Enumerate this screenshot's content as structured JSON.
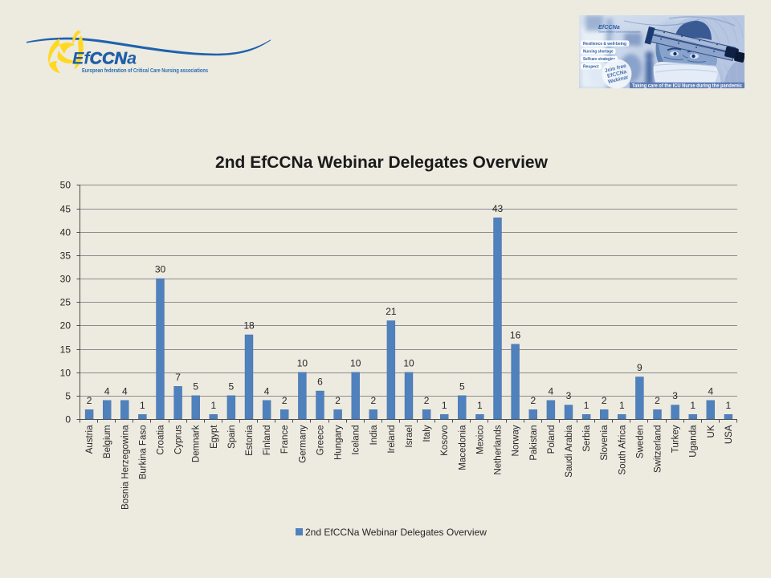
{
  "slide": {
    "background_color": "#EDEAE0"
  },
  "logo": {
    "name_prefix": "Ef",
    "name_mid": "CCN",
    "name_suffix": "a",
    "subtitle": "European federation of Critical Care Nursing associations",
    "brand_blue": "#1F5FA8",
    "accent_yellow": "#FFD821"
  },
  "webinar_banner": {
    "logo_text": "EfCCNa",
    "logo_subtitle": "European federation of Critical Care Nursing associations",
    "topics": [
      "Resilience & well-being",
      "Nursing shortage",
      "Selfcare strategies",
      "Respect"
    ],
    "badge_lines": [
      "Join free",
      "EfCCNa",
      "Webinar"
    ],
    "caption": "Taking care of the ICU Nurse during the pandemic"
  },
  "chart_data": {
    "type": "bar",
    "title": "2nd EfCCNa Webinar Delegates Overview",
    "categories": [
      "Austria",
      "Belgium",
      "Bosnia Herzegowina",
      "Burkina Faso",
      "Croatia",
      "Cyprus",
      "Demnark",
      "Egypt",
      "Spain",
      "Estonia",
      "Finland",
      "France",
      "Germany",
      "Greece",
      "Hungary",
      "Iceland",
      "India",
      "Ireland",
      "Israel",
      "Italy",
      "Kosovo",
      "Macedonia",
      "Mexico",
      "Netherlands",
      "Norway",
      "Pakistan",
      "Poland",
      "Saudi Arabia",
      "Serbia",
      "Slovenia",
      "South Africa",
      "Sweden",
      "Switzerland",
      "Turkey",
      "Uganda",
      "UK",
      "USA"
    ],
    "values": [
      2,
      4,
      4,
      1,
      30,
      7,
      5,
      1,
      5,
      18,
      4,
      2,
      10,
      6,
      2,
      10,
      2,
      21,
      10,
      2,
      1,
      5,
      1,
      43,
      16,
      2,
      4,
      3,
      1,
      2,
      1,
      9,
      2,
      3,
      1,
      4,
      1
    ],
    "ylim": [
      0,
      50
    ],
    "ytick_step": 5,
    "grid": true,
    "legend": [
      "2nd EfCCNa Webinar Delegates Overview"
    ],
    "legend_position": "bottom",
    "bar_color": "#4F81BD",
    "xlabel": "",
    "ylabel": ""
  }
}
